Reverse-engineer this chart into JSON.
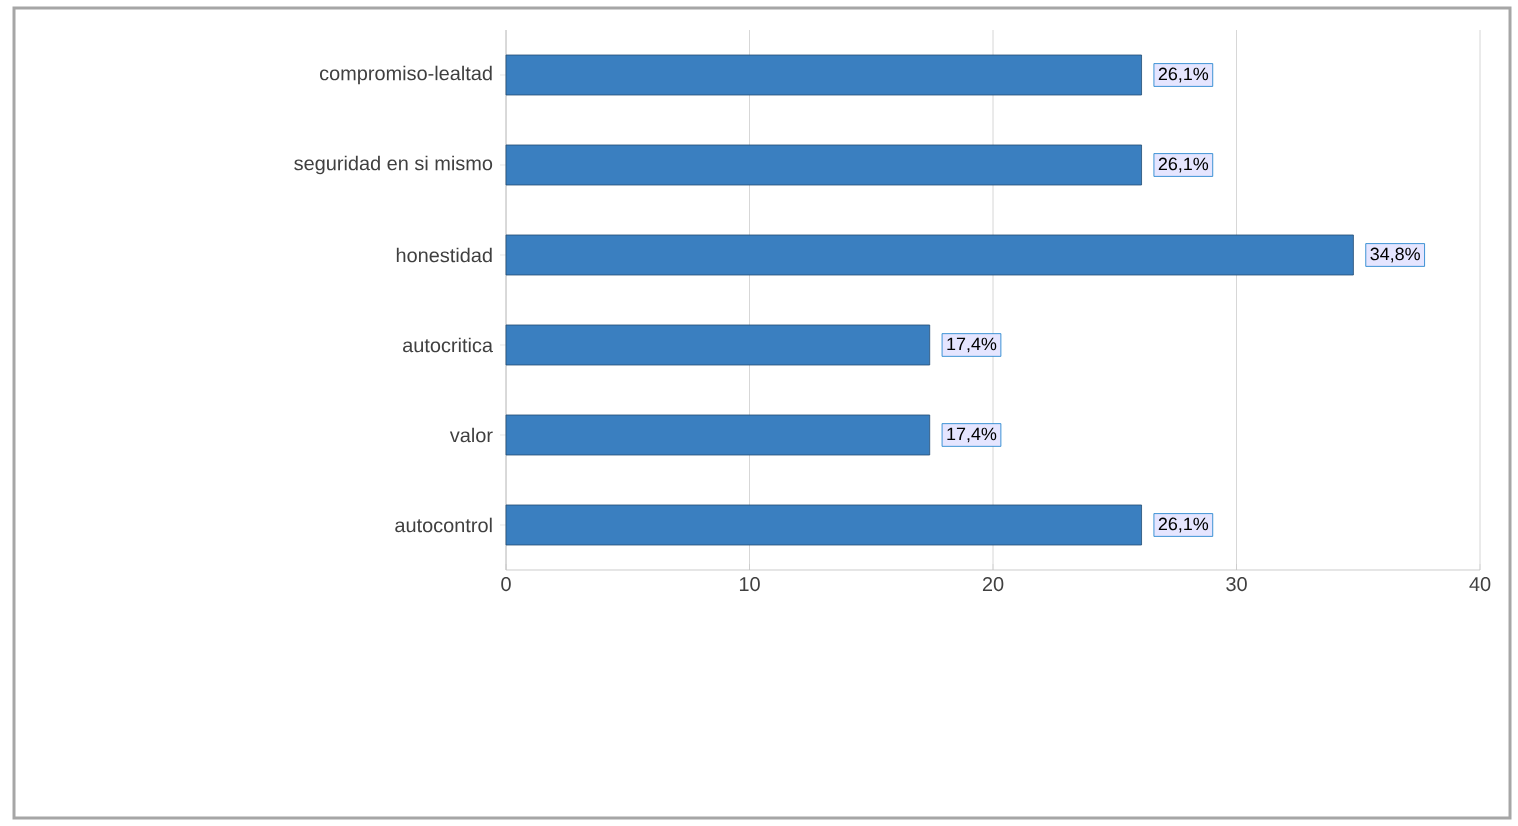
{
  "chart_data": {
    "type": "bar",
    "orientation": "horizontal",
    "categories": [
      "compromiso-lealtad",
      "seguridad en si mismo",
      "honestidad",
      "autocritica",
      "valor",
      "autocontrol"
    ],
    "values": [
      26.1,
      26.1,
      34.8,
      17.4,
      17.4,
      26.1
    ],
    "value_labels": [
      "26,1%",
      "26,1%",
      "34,8%",
      "17,4%",
      "17,4%",
      "26,1%"
    ],
    "color": "#3a7fc0",
    "xlim": [
      0,
      40
    ],
    "xticks": [
      0,
      10,
      20,
      30,
      40
    ],
    "grid": "x"
  }
}
